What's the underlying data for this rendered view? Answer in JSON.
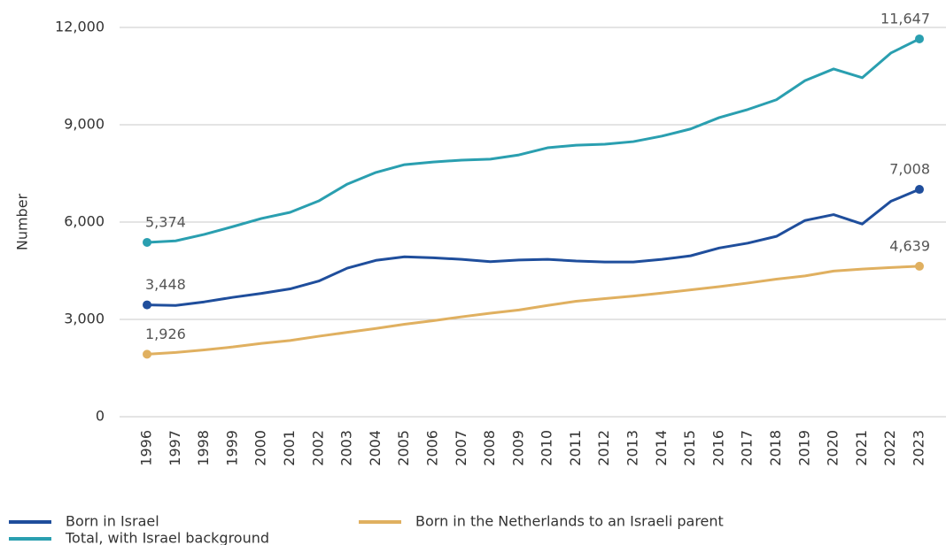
{
  "chart_data": {
    "type": "line",
    "y_label": "Number",
    "categories": [
      "1996",
      "1997",
      "1998",
      "1999",
      "2000",
      "2001",
      "2002",
      "2003",
      "2004",
      "2005",
      "2006",
      "2007",
      "2008",
      "2009",
      "2010",
      "2011",
      "2012",
      "2013",
      "2014",
      "2015",
      "2016",
      "2017",
      "2018",
      "2019",
      "2020",
      "2021",
      "2022",
      "2023"
    ],
    "series": [
      {
        "name": "Born in Israel",
        "color": "#1f4e9c",
        "values": [
          3448,
          3430,
          3540,
          3680,
          3800,
          3940,
          4180,
          4580,
          4820,
          4930,
          4900,
          4850,
          4780,
          4830,
          4850,
          4800,
          4770,
          4770,
          4850,
          4960,
          5200,
          5350,
          5560,
          6050,
          6230,
          5940,
          6640,
          7008
        ],
        "value_labels": [
          "3,448",
          null,
          null,
          null,
          null,
          null,
          null,
          null,
          null,
          null,
          null,
          null,
          null,
          null,
          null,
          null,
          null,
          null,
          null,
          null,
          null,
          null,
          null,
          null,
          null,
          null,
          null,
          "7,008"
        ]
      },
      {
        "name": "Born in the Netherlands to an Israeli parent",
        "color": "#e0b060",
        "values": [
          1926,
          1980,
          2060,
          2150,
          2260,
          2350,
          2480,
          2600,
          2720,
          2850,
          2960,
          3080,
          3190,
          3290,
          3430,
          3560,
          3640,
          3720,
          3810,
          3910,
          4010,
          4120,
          4240,
          4340,
          4490,
          4550,
          4600,
          4639
        ],
        "value_labels": [
          "1,926",
          null,
          null,
          null,
          null,
          null,
          null,
          null,
          null,
          null,
          null,
          null,
          null,
          null,
          null,
          null,
          null,
          null,
          null,
          null,
          null,
          null,
          null,
          null,
          null,
          null,
          null,
          "4,639"
        ]
      },
      {
        "name": "Total, with Israel background",
        "color": "#2a9fb0",
        "values": [
          5374,
          5420,
          5620,
          5860,
          6110,
          6300,
          6650,
          7170,
          7530,
          7770,
          7850,
          7910,
          7940,
          8070,
          8290,
          8370,
          8400,
          8480,
          8650,
          8870,
          9220,
          9470,
          9770,
          10360,
          10720,
          10450,
          11210,
          11647
        ],
        "value_labels": [
          "5,374",
          null,
          null,
          null,
          null,
          null,
          null,
          null,
          null,
          null,
          null,
          null,
          null,
          null,
          null,
          null,
          null,
          null,
          null,
          null,
          null,
          null,
          null,
          null,
          null,
          null,
          null,
          "11,647"
        ]
      }
    ],
    "ylim": [
      0,
      12000
    ],
    "yticks": [
      0,
      {
        "value": 3000,
        "label": "3,000"
      },
      {
        "value": 6000,
        "label": "6,000"
      },
      {
        "value": 9000,
        "label": "9,000"
      },
      {
        "value": 12000,
        "label": "12,000"
      }
    ],
    "grid": true,
    "legend": "bottom"
  }
}
